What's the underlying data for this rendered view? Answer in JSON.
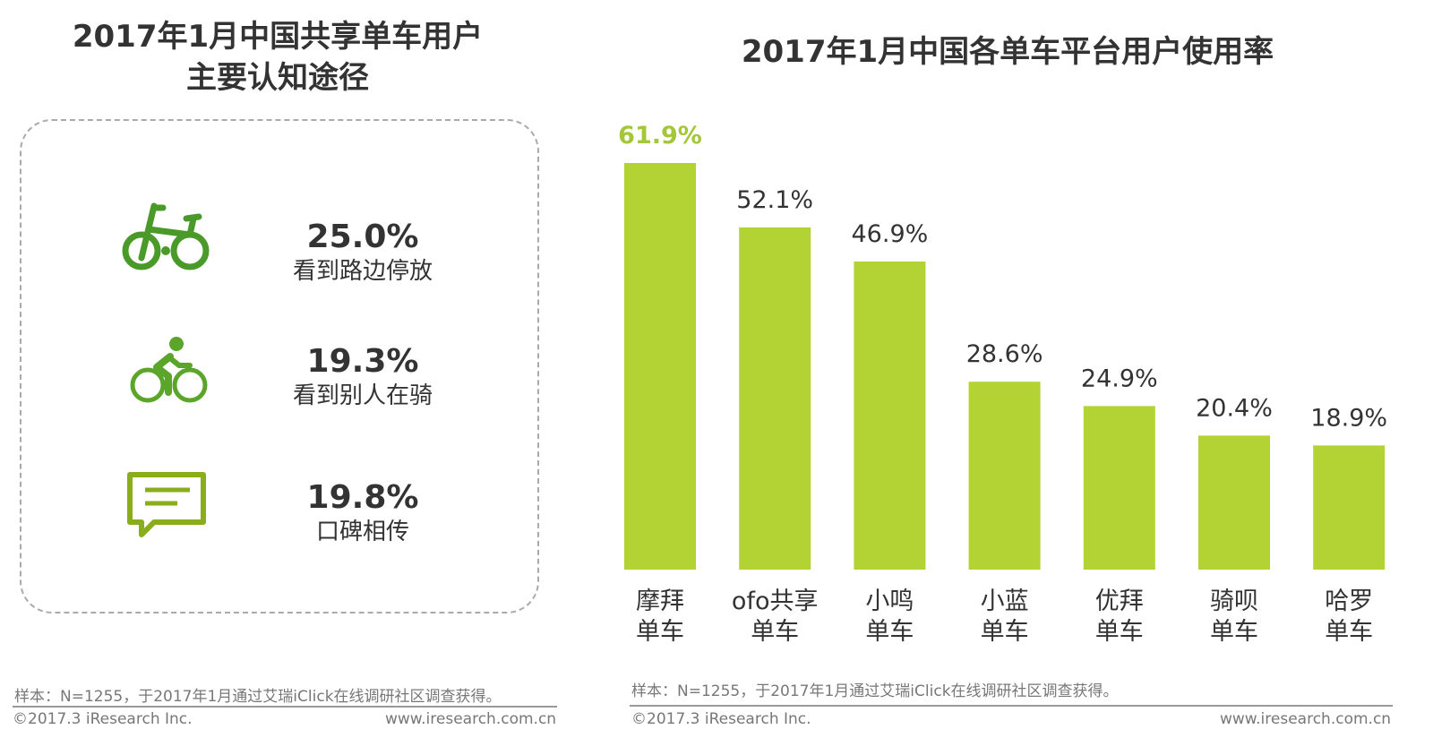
{
  "left": {
    "title_line1": "2017年1月中国共享单车用户",
    "title_line2": "主要认知途径",
    "items": [
      {
        "icon": "bicycle-icon",
        "value": "25.0%",
        "label": "看到路边停放"
      },
      {
        "icon": "cyclist-icon",
        "value": "19.3%",
        "label": "看到别人在骑"
      },
      {
        "icon": "chat-bubble-icon",
        "value": "19.8%",
        "label": "口碑相传"
      }
    ],
    "note": "样本：N=1255，于2017年1月通过艾瑞iClick在线调研社区调查获得。",
    "copyright": "©2017.3 iResearch Inc.",
    "website": "www.iresearch.com.cn"
  },
  "right": {
    "note": "样本：N=1255，于2017年1月通过艾瑞iClick在线调研社区调查获得。",
    "copyright": "©2017.3 iResearch Inc.",
    "website": "www.iresearch.com.cn"
  },
  "colors": {
    "bar": "#b3d234",
    "highlight_label": "#a4c639",
    "icon_green": "#4a9a2a",
    "icon_olive": "#8aad1a"
  },
  "chart_data": {
    "type": "bar",
    "title": "2017年1月中国各单车平台用户使用率",
    "categories": [
      [
        "摩拜",
        "单车"
      ],
      [
        "ofo共享",
        "单车"
      ],
      [
        "小鸣",
        "单车"
      ],
      [
        "小蓝",
        "单车"
      ],
      [
        "优拜",
        "单车"
      ],
      [
        "骑呗",
        "单车"
      ],
      [
        "哈罗",
        "单车"
      ]
    ],
    "values": [
      61.9,
      52.1,
      46.9,
      28.6,
      24.9,
      20.4,
      18.9
    ],
    "labels": [
      "61.9%",
      "52.1%",
      "46.9%",
      "28.6%",
      "24.9%",
      "20.4%",
      "18.9%"
    ],
    "ylim": [
      0,
      62
    ],
    "xlabel": "",
    "ylabel": "",
    "grid": false
  }
}
